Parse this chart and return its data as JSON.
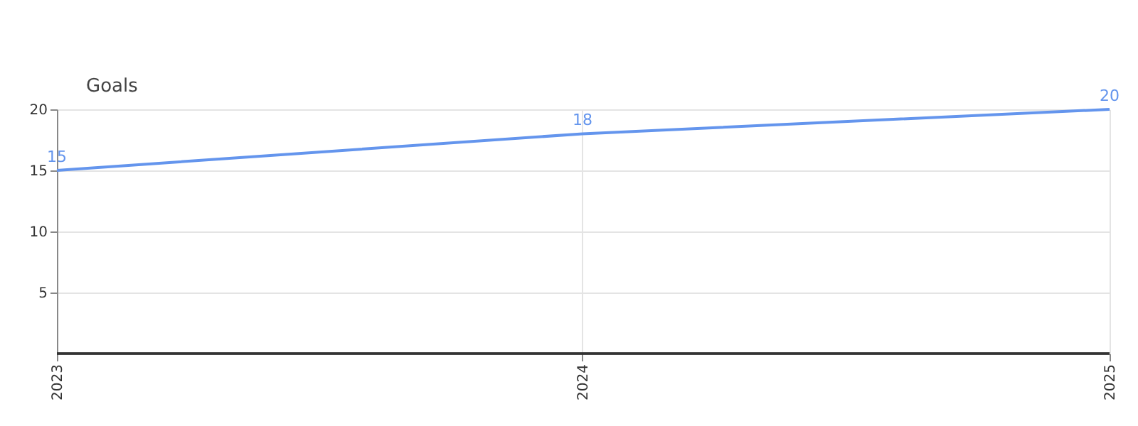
{
  "chart_data": {
    "type": "line",
    "ylabel": "Goals",
    "x": [
      "2023",
      "2024",
      "2025"
    ],
    "series": [
      {
        "color": "#6495ed",
        "values": [
          15,
          18,
          20
        ]
      }
    ],
    "xlim": [
      "2023",
      "2025"
    ],
    "xticks": [
      "2023",
      "2024",
      "2025"
    ],
    "ylim": [
      0,
      20
    ],
    "yticks": [
      5,
      10,
      15,
      20
    ],
    "grid": true,
    "data_labels": true,
    "legend": false,
    "marker": "none",
    "line_style": "solid"
  }
}
